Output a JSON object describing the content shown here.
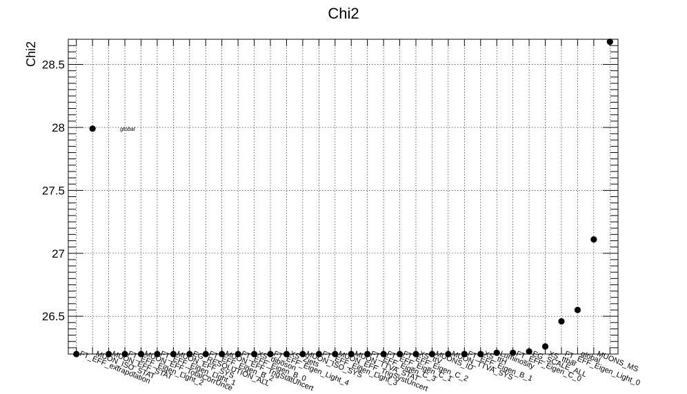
{
  "chart_data": {
    "type": "scatter",
    "title": "Chi2",
    "ylabel": "Chi2",
    "xlabel": "",
    "ylim": [
      26.2,
      28.7
    ],
    "yticks": [
      26.5,
      27,
      27.5,
      28,
      28.5
    ],
    "ytick_labels": [
      "26.5",
      "27",
      "27.5",
      "28",
      "28.5"
    ],
    "grid": true,
    "categories": [
      "FT_EFF_extrapolation",
      "global",
      "MUON_ISO_STAT",
      "FT_EFF_Eigen_Light_2",
      "MUON_EFF_STAT",
      "FT_EFF_Eigen_Light_1",
      "MUON_EFF_TotalCorrUncertainty",
      "MUON_EFF_SYS",
      "EG_RESOLUTION_ALL",
      "FT_EFF_Eigen_B_2",
      "FT_EFF_Eigen_B_0",
      "MUON_EFF_TrigStatUncertainty",
      "FT_EFF_Eigen_Light_4",
      "XS_diboson",
      "FT_EFF_Eigen_Light_3",
      "XS_Zjets",
      "MUON_ISO_SYS",
      "MUON_EFF_TrigSystUncertainty",
      "MUON_TTVA_STAT",
      "FT_EFF_Eigen_C_3",
      "FT_EFF_Eigen_C_1",
      "FT_EFF_Eigen_C_2",
      "XS_ttV",
      "MUONS_ID",
      "MUON_TTVA_SYS",
      "FT_EFF_Eigen_B_1",
      "XS_ttH",
      "Luminosity",
      "FT_EFF_Eigen_C_0",
      "EG_SCALE_ALL",
      "XS_ttbar",
      "FT_EFF_Eigen_Light_0",
      "global",
      "MUONS_MS"
    ],
    "xtick_labels_visible": [
      "FT_EFF_extrapolation",
      "MUON_ISO_STAT",
      "MUON_EFF_STAT",
      "FT_EFF_Eigen_Light_2",
      "MUON_EFF_TotalCorrUnce",
      "FT_EFF_Eigen_Light_1",
      "MUON_EFF_SYS",
      "EG_RESOLUTION_ALL",
      "FT_EFF_Eigen_B_2",
      "MUON_EFF_TrigStatUncert",
      "FT_EFF_Eigen_B_0",
      "XS_diboson",
      "FT_EFF_Eigen_Light_4",
      "XS_Zjets",
      "MUON_ISO_SYS",
      "FT_EFF_Eigen_Light_3",
      "MUON_EFF_TrigSystUncert",
      "MUON_TTVA_STAT",
      "FT_EFF_Eigen_C_3",
      "FT_EFF_Eigen_C_1",
      "FT_EFF_Eigen_C_2",
      "XS_ttV",
      "MUONS_ID",
      "MUON_TTVA_SYS",
      "FT_EFF_Eigen_B_1",
      "XS_ttH",
      "Luminosity",
      "FT_EFF_Eigen_C_0",
      "EG_SCALE_ALL",
      "XS_ttbar",
      "FT_EFF_Eigen_Light_0",
      "global",
      "MUONS_MS"
    ],
    "values": [
      26.2,
      27.99,
      26.2,
      26.2,
      26.2,
      26.2,
      26.2,
      26.2,
      26.2,
      26.2,
      26.2,
      26.2,
      26.2,
      26.2,
      26.2,
      26.2,
      26.2,
      26.2,
      26.2,
      26.2,
      26.2,
      26.2,
      26.2,
      26.2,
      26.2,
      26.2,
      26.21,
      26.21,
      26.22,
      26.26,
      26.46,
      26.55,
      27.11,
      28.68
    ],
    "annotations": [
      {
        "text": "global",
        "category_index": 1,
        "value": 27.99
      }
    ],
    "marker_color": "#000000"
  }
}
